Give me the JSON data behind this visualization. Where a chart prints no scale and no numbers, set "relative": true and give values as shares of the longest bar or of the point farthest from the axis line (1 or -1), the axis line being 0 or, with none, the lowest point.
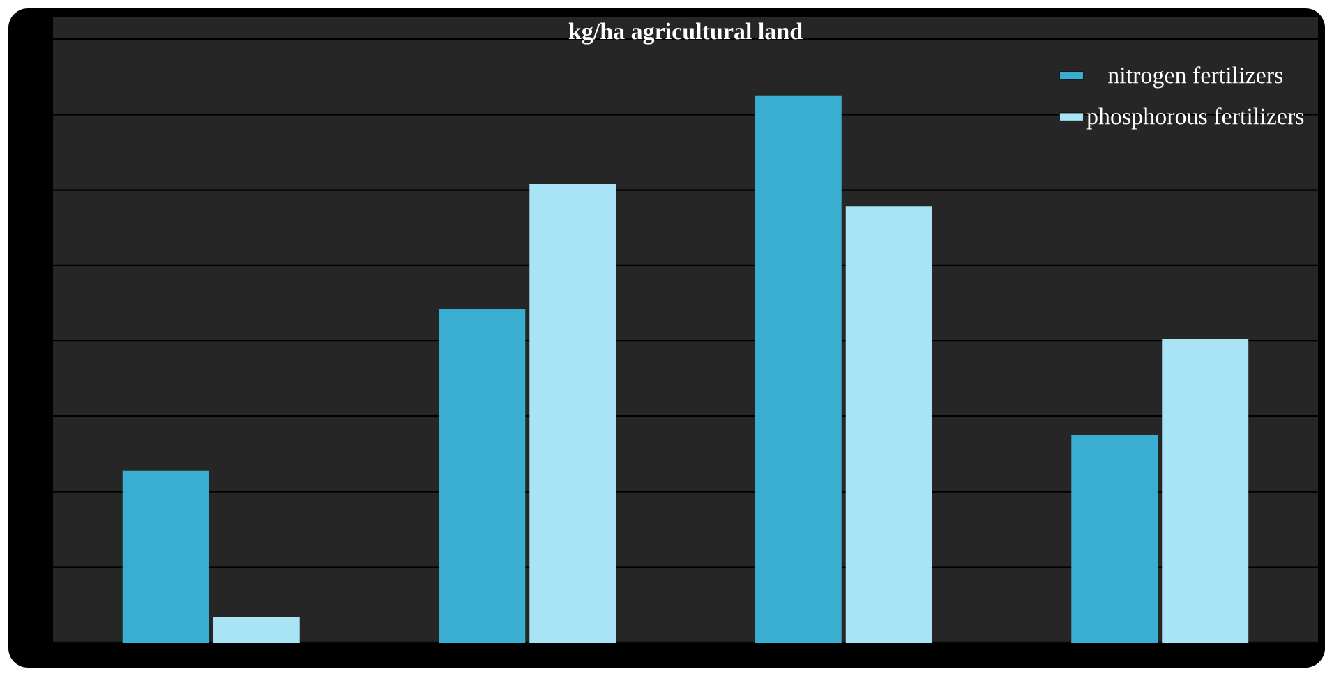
{
  "chart_data": {
    "type": "bar",
    "title": "kg/ha agricultural land",
    "relative": true,
    "categories": [
      null,
      null,
      null,
      null
    ],
    "series": [
      {
        "name": "nitrogen fertilizers",
        "color": "#3aaed0",
        "values": [
          0.314,
          0.61,
          1,
          0.38
        ]
      },
      {
        "name": "phosphorous fertilizers",
        "color": "#a8e4f5",
        "values": [
          0.046,
          0.839,
          0.798,
          0.556
        ]
      }
    ],
    "grid": "y",
    "legend": "top right"
  }
}
